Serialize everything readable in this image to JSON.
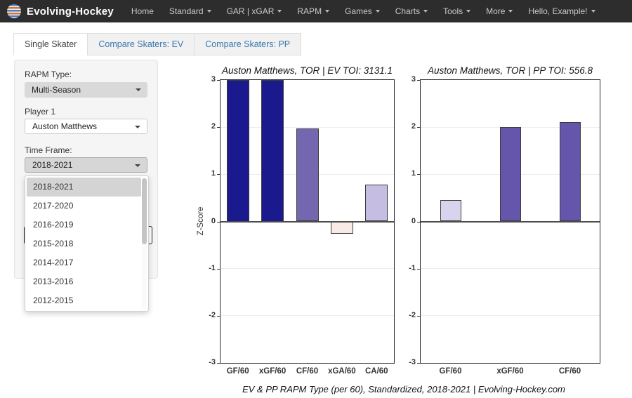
{
  "navbar": {
    "brand": "Evolving-Hockey",
    "items": [
      {
        "label": "Home",
        "caret": false
      },
      {
        "label": "Standard",
        "caret": true
      },
      {
        "label": "GAR | xGAR",
        "caret": true
      },
      {
        "label": "RAPM",
        "caret": true
      },
      {
        "label": "Games",
        "caret": true
      },
      {
        "label": "Charts",
        "caret": true
      },
      {
        "label": "Tools",
        "caret": true
      },
      {
        "label": "More",
        "caret": true
      },
      {
        "label": "Hello, Example!",
        "caret": true
      }
    ]
  },
  "tabs": [
    {
      "label": "Single Skater",
      "active": true
    },
    {
      "label": "Compare Skaters: EV",
      "active": false
    },
    {
      "label": "Compare Skaters: PP",
      "active": false
    }
  ],
  "sidebar": {
    "rapm_type": {
      "label": "RAPM Type:",
      "value": "Multi-Season"
    },
    "player1": {
      "label": "Player 1",
      "value": "Auston Matthews"
    },
    "time_frame": {
      "label": "Time Frame:",
      "value": "2018-2021"
    },
    "time_frame_options": [
      "2018-2021",
      "2017-2020",
      "2016-2019",
      "2015-2018",
      "2014-2017",
      "2013-2016",
      "2012-2015"
    ],
    "selected_option": "2018-2021"
  },
  "chart_data": [
    {
      "type": "bar",
      "title": "Auston Matthews, TOR  |  EV TOI: 3131.1",
      "ylabel": "Z-Score",
      "ylim": [
        -3,
        3
      ],
      "yticks": [
        3,
        2,
        1,
        0,
        -1,
        -2,
        -3
      ],
      "grid": true,
      "categories": [
        "GF/60",
        "xGF/60",
        "CF/60",
        "xGA/60",
        "CA/60"
      ],
      "values": [
        3.0,
        3.0,
        1.97,
        -0.26,
        0.78
      ],
      "note": "GF/60 and xGF/60 bars are clipped at the axis maximum of 3",
      "colors": [
        "#1a1a8e",
        "#1a1a8e",
        "#7466af",
        "#faeae5",
        "#c6bde2"
      ]
    },
    {
      "type": "bar",
      "title": "Auston Matthews, TOR  |  PP TOI: 556.8",
      "ylabel": "",
      "ylim": [
        -3,
        3
      ],
      "yticks": [
        3,
        2,
        1,
        0,
        -1,
        -2,
        -3
      ],
      "grid": true,
      "categories": [
        "GF/60",
        "xGF/60",
        "CF/60"
      ],
      "values": [
        0.45,
        2.0,
        2.1
      ],
      "colors": [
        "#d9d4ed",
        "#6656ab",
        "#6656ab"
      ]
    }
  ],
  "caption": "EV & PP RAPM Type (per 60), Standardized, 2018-2021    |    Evolving-Hockey.com"
}
